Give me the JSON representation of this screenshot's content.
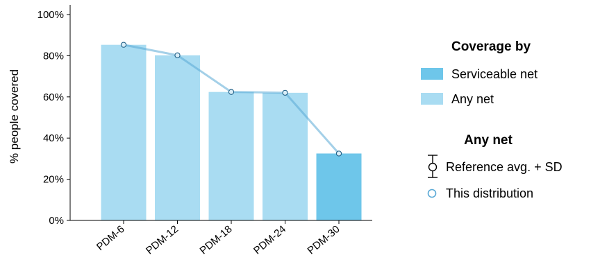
{
  "chart_data": {
    "type": "bar",
    "ylabel": "% people covered",
    "xlabel": "",
    "ylim": [
      0,
      100
    ],
    "yticks": [
      0,
      20,
      40,
      60,
      80,
      100
    ],
    "ytick_labels": [
      "0%",
      "20%",
      "40%",
      "60%",
      "80%",
      "100%"
    ],
    "categories": [
      "PDM-6",
      "PDM-12",
      "PDM-18",
      "PDM-24",
      "PDM-30"
    ],
    "series": [
      {
        "name": "Serviceable net",
        "values": [
          0,
          0,
          0,
          0,
          32.5
        ],
        "color": "#6ec6ea"
      },
      {
        "name": "Any net",
        "values": [
          85.3,
          80.2,
          62.4,
          62.0,
          32.5
        ],
        "color": "#a9dcf2"
      },
      {
        "name": "This distribution",
        "values": [
          85.3,
          80.2,
          62.4,
          62.0,
          32.5
        ],
        "color": "#5aa9d6"
      }
    ],
    "legend": {
      "placement": "right",
      "coverage_title": "Coverage by",
      "coverage_items": [
        "Serviceable net",
        "Any net"
      ],
      "anynet_title": "Any net",
      "anynet_items": [
        "Reference avg. + SD",
        "This distribution"
      ]
    },
    "grid": false
  }
}
